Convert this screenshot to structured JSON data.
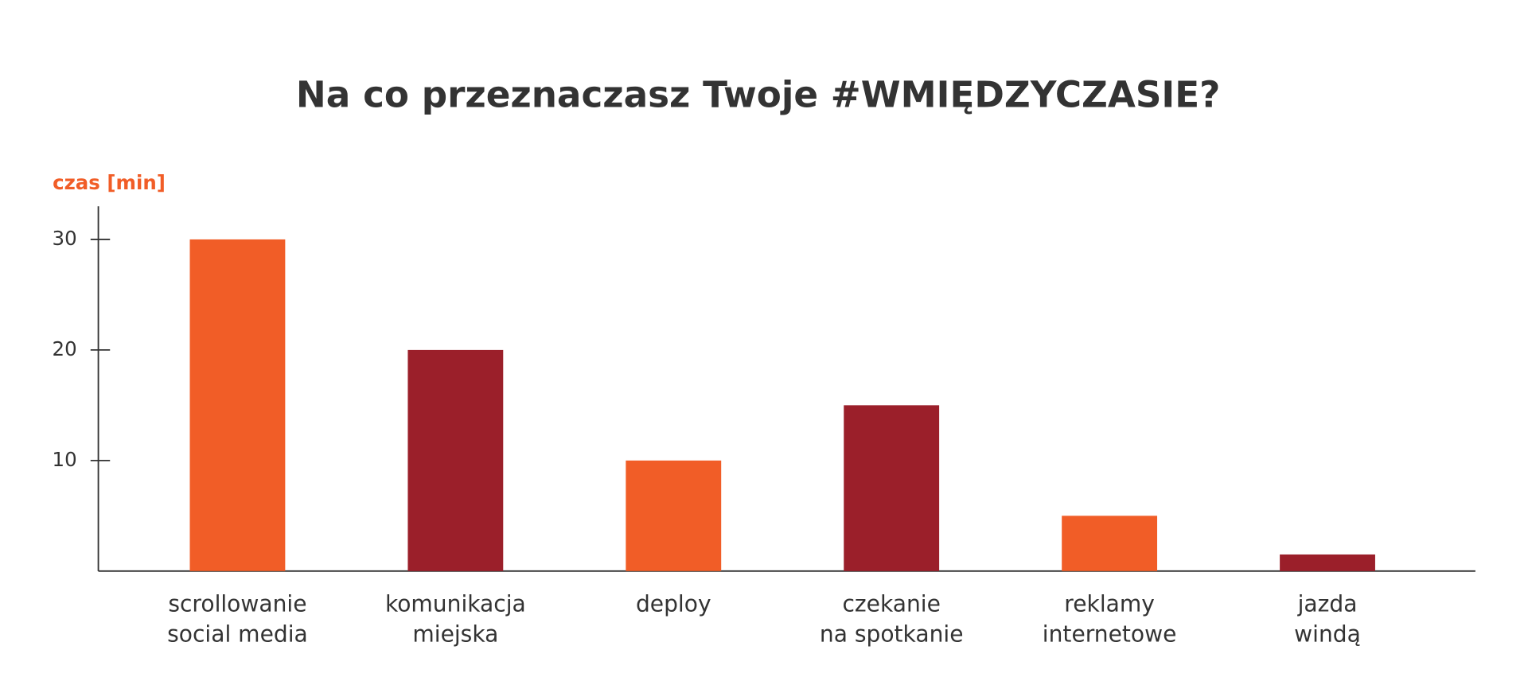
{
  "chart_data": {
    "type": "bar",
    "title": "Na co przeznaczasz Twoje #WMIĘDZYCZASIE?",
    "y_label": "czas [min]",
    "categories": [
      [
        "scrollowanie",
        "social media"
      ],
      [
        "komunikacja",
        "miejska"
      ],
      [
        "deploy"
      ],
      [
        "czekanie",
        "na spotkanie"
      ],
      [
        "reklamy",
        "internetowe"
      ],
      [
        "jazda",
        "windą"
      ]
    ],
    "values": [
      30,
      20,
      10,
      15,
      5,
      1.5
    ],
    "colors": [
      "#f15d27",
      "#9b1f2a",
      "#f15d27",
      "#9b1f2a",
      "#f15d27",
      "#9b1f2a"
    ],
    "ylim": [
      0,
      33
    ],
    "yticks": [
      10,
      20,
      30
    ]
  }
}
